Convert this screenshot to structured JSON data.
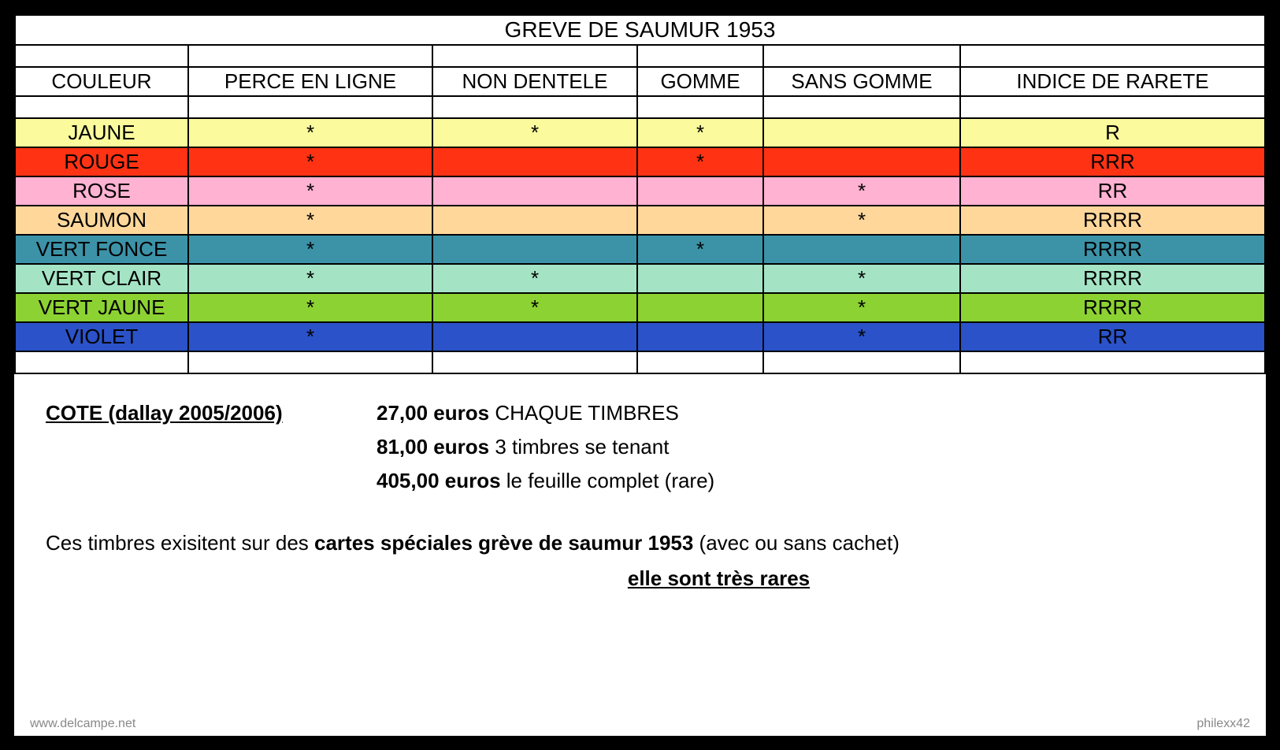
{
  "title": "GREVE DE SAUMUR 1953",
  "columns": {
    "col0": "COULEUR",
    "col1": "PERCE EN LIGNE",
    "col2": "NON DENTELE",
    "col3": "GOMME",
    "col4": "SANS GOMME",
    "col5": "INDICE DE RARETE"
  },
  "column_widths": [
    "220px",
    "310px",
    "260px",
    "160px",
    "250px",
    "auto"
  ],
  "rows": [
    {
      "name": "JAUNE",
      "bg": "#fbfb9d",
      "perce": "*",
      "non_dentele": "*",
      "gomme": "*",
      "sans_gomme": "",
      "rarete": "R"
    },
    {
      "name": "ROUGE",
      "bg": "#ff3314",
      "perce": "*",
      "non_dentele": "",
      "gomme": "*",
      "sans_gomme": "",
      "rarete": "RRR"
    },
    {
      "name": "ROSE",
      "bg": "#ffb2d2",
      "perce": "*",
      "non_dentele": "",
      "gomme": "",
      "sans_gomme": "*",
      "rarete": "RR"
    },
    {
      "name": "SAUMON",
      "bg": "#ffd79b",
      "perce": "*",
      "non_dentele": "",
      "gomme": "",
      "sans_gomme": "*",
      "rarete": "RRRR"
    },
    {
      "name": "VERT FONCE",
      "bg": "#3c93a8",
      "perce": "*",
      "non_dentele": "",
      "gomme": "*",
      "sans_gomme": "",
      "rarete": "RRRR"
    },
    {
      "name": "VERT CLAIR",
      "bg": "#a4e4c5",
      "perce": "*",
      "non_dentele": "*",
      "gomme": "",
      "sans_gomme": "*",
      "rarete": "RRRR"
    },
    {
      "name": "VERT JAUNE",
      "bg": "#8dd233",
      "perce": "*",
      "non_dentele": "*",
      "gomme": "",
      "sans_gomme": "*",
      "rarete": "RRRR"
    },
    {
      "name": "VIOLET",
      "bg": "#2b52c8",
      "perce": "*",
      "non_dentele": "",
      "gomme": "",
      "sans_gomme": "*",
      "rarete": "RR"
    }
  ],
  "footer": {
    "cote_label": "COTE (dallay 2005/2006)",
    "prices": [
      {
        "amount": "27,00 euros",
        "desc": "CHAQUE TIMBRES"
      },
      {
        "amount": "81,00 euros",
        "desc": "3 timbres se tenant"
      },
      {
        "amount": "405,00 euros",
        "desc": "le feuille complet (rare)"
      }
    ],
    "note_prefix": "Ces timbres exisitent sur des ",
    "note_bold": "cartes spéciales grève de saumur 1953",
    "note_suffix": " (avec ou sans cachet)",
    "rare_text": "elle sont très rares"
  },
  "watermark": {
    "left": "www.delcampe.net",
    "right": "philexx42"
  },
  "colors": {
    "border": "#000000",
    "background": "#ffffff",
    "text": "#000000"
  }
}
